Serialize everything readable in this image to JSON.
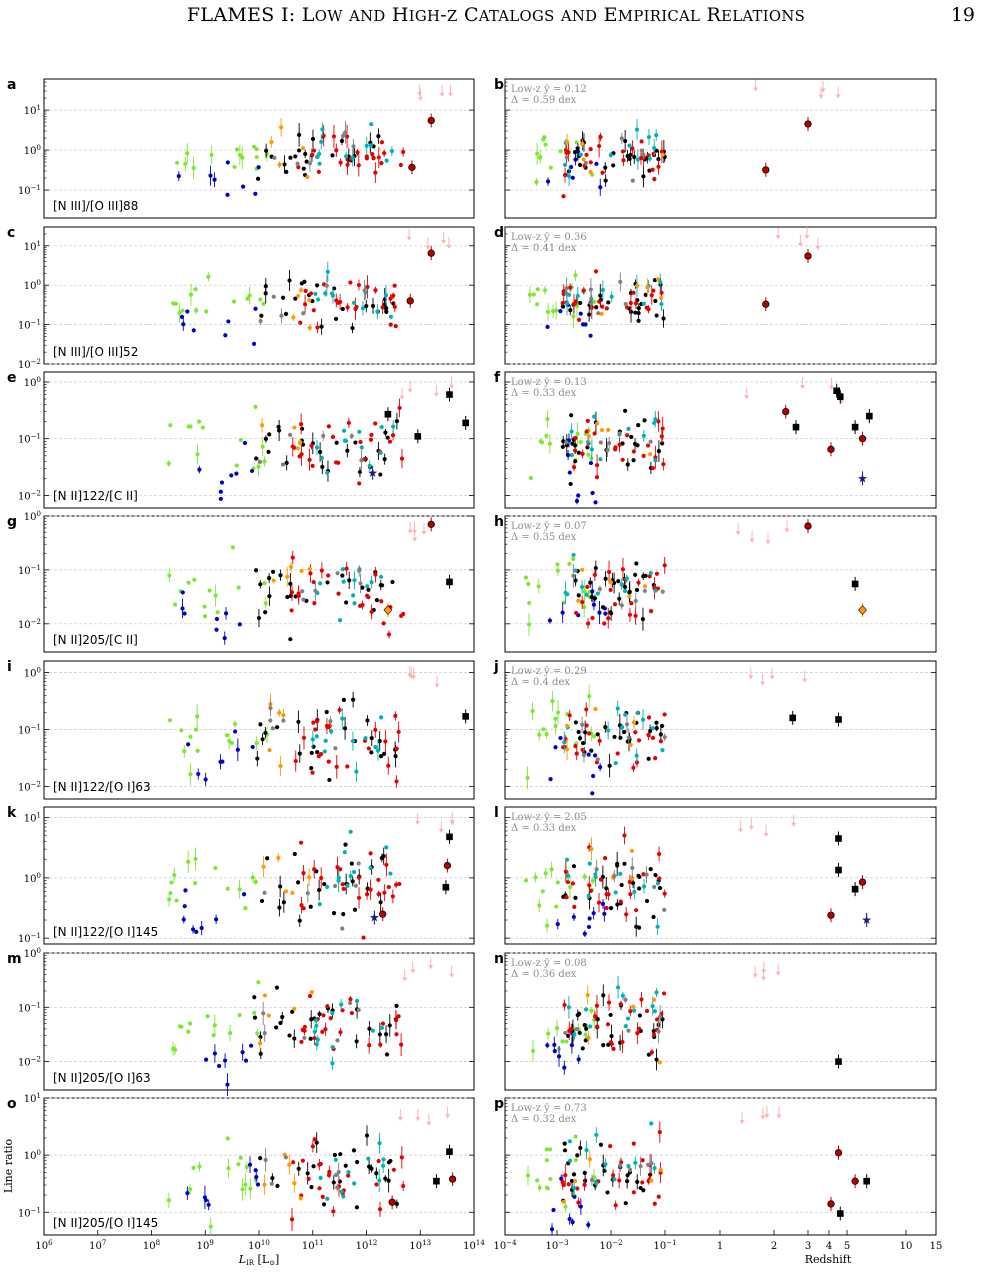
{
  "page": {
    "running_head": "FLAMES I: Low and High-z Catalogs and Empirical Relations",
    "page_number": "19"
  },
  "chart_data": [
    {
      "type": "scatter",
      "title": "",
      "xlabel": "L_IR [L_⊙]",
      "ylabel": "Line ratio",
      "xscale": "log",
      "yscale": "log",
      "xlim": [
        1000000,
        100000000000000
      ],
      "xticks": [
        "10^6",
        "10^7",
        "10^8",
        "10^9",
        "10^10",
        "10^11",
        "10^12",
        "10^13",
        "10^14"
      ],
      "grid": "horizontal dashed at decades",
      "legend": "none",
      "colors": {
        "local_starburst_lowmetal": "#7fe633",
        "dwarf": "#0000cc",
        "lirg": "#000000",
        "ulirg": "#e60000",
        "agn": "#00b3b3",
        "seyfert": "#ff9900",
        "other": "#808080",
        "highz_square": "#000000",
        "highz_circle": "#b30000",
        "upper_limit_pale": "#ffb3b3"
      },
      "panels": [
        {
          "letter": "a",
          "label": "[N III]/[O III]88",
          "ylim": [
            0.02,
            60
          ],
          "yticks": [
            "10^{-1}",
            "10^{0}",
            "10^{1}"
          ],
          "highlighted": [
            {
              "x": 16000000000000.0,
              "y": 5.5,
              "marker": "circle",
              "color": "#b30000"
            },
            {
              "x": 7000000000000.0,
              "y": 0.37,
              "marker": "circle",
              "color": "#b30000"
            }
          ]
        },
        {
          "letter": "c",
          "label": "[N III]/[O III]52",
          "ylim": [
            0.01,
            30
          ],
          "yticks": [
            "10^{-2}",
            "10^{-1}",
            "10^{0}",
            "10^{1}"
          ],
          "highlighted": [
            {
              "x": 16000000000000.0,
              "y": 6.5,
              "marker": "circle",
              "color": "#b30000"
            },
            {
              "x": 6500000000000.0,
              "y": 0.4,
              "marker": "circle",
              "color": "#b30000"
            }
          ]
        },
        {
          "letter": "e",
          "label": "[N II]122/[C II]",
          "ylim": [
            0.006,
            1.5
          ],
          "yticks": [
            "10^{-2}",
            "10^{-1}",
            "10^{0}"
          ],
          "highlighted": [
            {
              "x": 35000000000000.0,
              "y": 0.6,
              "marker": "square",
              "color": "#000000"
            },
            {
              "x": 70000000000000.0,
              "y": 0.19,
              "marker": "square",
              "color": "#000000"
            },
            {
              "x": 2500000000000.0,
              "y": 0.27,
              "marker": "square",
              "color": "#000000"
            },
            {
              "x": 9000000000000.0,
              "y": 0.11,
              "marker": "square",
              "color": "#000000"
            },
            {
              "x": 1300000000000.0,
              "y": 0.025,
              "marker": "star",
              "color": "#1a1a80"
            }
          ]
        },
        {
          "letter": "g",
          "label": "[N II]205/[C II]",
          "ylim": [
            0.003,
            1.0
          ],
          "yticks": [
            "10^{-2}",
            "10^{-1}",
            "10^{0}"
          ],
          "highlighted": [
            {
              "x": 16000000000000.0,
              "y": 0.7,
              "marker": "circle",
              "color": "#b30000"
            },
            {
              "x": 2500000000000.0,
              "y": 0.018,
              "marker": "diamond",
              "color": "#ff9900"
            },
            {
              "x": 35000000000000.0,
              "y": 0.06,
              "marker": "square",
              "color": "#000000"
            }
          ]
        },
        {
          "letter": "i",
          "label": "[N II]122/[O I]63",
          "ylim": [
            0.006,
            1.6
          ],
          "yticks": [
            "10^{-2}",
            "10^{-1}",
            "10^{0}"
          ],
          "highlighted": [
            {
              "x": 70000000000000.0,
              "y": 0.17,
              "marker": "square",
              "color": "#000000"
            }
          ]
        },
        {
          "letter": "k",
          "label": "[N II]122/[O I]145",
          "ylim": [
            0.08,
            15
          ],
          "yticks": [
            "10^{-1}",
            "10^{0}",
            "10^{1}"
          ],
          "highlighted": [
            {
              "x": 35000000000000.0,
              "y": 4.8,
              "marker": "square",
              "color": "#000000"
            },
            {
              "x": 30000000000000.0,
              "y": 0.7,
              "marker": "square",
              "color": "#000000"
            },
            {
              "x": 32000000000000.0,
              "y": 1.6,
              "marker": "circle",
              "color": "#b30000"
            },
            {
              "x": 1400000000000.0,
              "y": 0.22,
              "marker": "star",
              "color": "#1a1a80"
            },
            {
              "x": 2000000000000.0,
              "y": 0.25,
              "marker": "circle",
              "color": "#b30000"
            }
          ]
        },
        {
          "letter": "m",
          "label": "[N II]205/[O I]63",
          "ylim": [
            0.003,
            1.0
          ],
          "yticks": [
            "10^{-2}",
            "10^{-1}",
            "10^{0}"
          ],
          "highlighted": []
        },
        {
          "letter": "o",
          "label": "[N II]205/[O I]145",
          "ylim": [
            0.04,
            10
          ],
          "yticks": [
            "10^{-1}",
            "10^{0}",
            "10^{1}"
          ],
          "highlighted": [
            {
              "x": 35000000000000.0,
              "y": 1.15,
              "marker": "square",
              "color": "#000000"
            },
            {
              "x": 20000000000000.0,
              "y": 0.35,
              "marker": "square",
              "color": "#000000"
            },
            {
              "x": 40000000000000.0,
              "y": 0.38,
              "marker": "circle",
              "color": "#b30000"
            },
            {
              "x": 3000000000000.0,
              "y": 0.15,
              "marker": "circle",
              "color": "#b30000"
            }
          ]
        }
      ]
    },
    {
      "type": "scatter",
      "title": "",
      "xlabel": "Redshift",
      "ylabel": "",
      "xscale": "log below 1, linear-log above 1",
      "xlim": [
        0.0001,
        15
      ],
      "xticks": [
        "10^{-4}",
        "10^{-3}",
        "10^{-2}",
        "10^{-1}",
        "1",
        "2",
        "3",
        "4",
        "5",
        "10",
        "15"
      ],
      "grid": "horizontal dashed at decades",
      "legend": "none",
      "panels": [
        {
          "letter": "b",
          "stat_line1": "Low-z ȳ = 0.12",
          "stat_line2": "Δ = 0.59 dex",
          "ylim": [
            0.02,
            60
          ],
          "highlighted": [
            {
              "z": 3.0,
              "y": 4.5,
              "marker": "circle",
              "color": "#b30000"
            },
            {
              "z": 1.8,
              "y": 0.32,
              "marker": "circle",
              "color": "#b30000"
            }
          ]
        },
        {
          "letter": "d",
          "stat_line1": "Low-z ȳ = 0.36",
          "stat_line2": "Δ = 0.41 dex",
          "ylim": [
            0.01,
            30
          ],
          "highlighted": [
            {
              "z": 3.0,
              "y": 5.5,
              "marker": "circle",
              "color": "#b30000"
            },
            {
              "z": 1.8,
              "y": 0.33,
              "marker": "circle",
              "color": "#b30000"
            }
          ]
        },
        {
          "letter": "f",
          "stat_line1": "Low-z ȳ = 0.13",
          "stat_line2": "Δ = 0.33 dex",
          "ylim": [
            0.006,
            1.5
          ],
          "highlighted": [
            {
              "z": 2.3,
              "y": 0.3,
              "marker": "circle",
              "color": "#b30000"
            },
            {
              "z": 2.6,
              "y": 0.16,
              "marker": "square",
              "color": "#000000"
            },
            {
              "z": 4.4,
              "y": 0.7,
              "marker": "square",
              "color": "#000000"
            },
            {
              "z": 4.6,
              "y": 0.55,
              "marker": "square",
              "color": "#000000"
            },
            {
              "z": 5.5,
              "y": 0.16,
              "marker": "square",
              "color": "#000000"
            },
            {
              "z": 6.5,
              "y": 0.25,
              "marker": "square",
              "color": "#000000"
            },
            {
              "z": 6.0,
              "y": 0.1,
              "marker": "circle",
              "color": "#b30000"
            },
            {
              "z": 4.1,
              "y": 0.065,
              "marker": "circle",
              "color": "#b30000"
            },
            {
              "z": 6.0,
              "y": 0.02,
              "marker": "star",
              "color": "#1a1a80"
            }
          ]
        },
        {
          "letter": "h",
          "stat_line1": "Low-z ȳ = 0.07",
          "stat_line2": "Δ = 0.35 dex",
          "ylim": [
            0.003,
            1.0
          ],
          "highlighted": [
            {
              "z": 3.0,
              "y": 0.65,
              "marker": "circle",
              "color": "#b30000"
            },
            {
              "z": 6.0,
              "y": 0.018,
              "marker": "diamond",
              "color": "#ff9900"
            },
            {
              "z": 5.5,
              "y": 0.055,
              "marker": "square",
              "color": "#000000"
            }
          ]
        },
        {
          "letter": "j",
          "stat_line1": "Low-z ȳ = 0.29",
          "stat_line2": "Δ = 0.4 dex",
          "ylim": [
            0.006,
            1.6
          ],
          "highlighted": [
            {
              "z": 2.5,
              "y": 0.16,
              "marker": "square",
              "color": "#000000"
            },
            {
              "z": 4.5,
              "y": 0.15,
              "marker": "square",
              "color": "#000000"
            }
          ]
        },
        {
          "letter": "l",
          "stat_line1": "Low-z ȳ = 2.05",
          "stat_line2": "Δ = 0.33 dex",
          "ylim": [
            0.08,
            15
          ],
          "highlighted": [
            {
              "z": 4.5,
              "y": 4.5,
              "marker": "square",
              "color": "#000000"
            },
            {
              "z": 4.5,
              "y": 1.35,
              "marker": "square",
              "color": "#000000"
            },
            {
              "z": 5.5,
              "y": 0.65,
              "marker": "square",
              "color": "#000000"
            },
            {
              "z": 6.0,
              "y": 0.85,
              "marker": "circle",
              "color": "#b30000"
            },
            {
              "z": 6.3,
              "y": 0.2,
              "marker": "star",
              "color": "#1a1a80"
            },
            {
              "z": 4.1,
              "y": 0.24,
              "marker": "circle",
              "color": "#b30000"
            }
          ]
        },
        {
          "letter": "n",
          "stat_line1": "Low-z ȳ = 0.08",
          "stat_line2": "Δ = 0.36 dex",
          "ylim": [
            0.003,
            1.0
          ],
          "highlighted": [
            {
              "z": 4.5,
              "y": 0.01,
              "marker": "square",
              "color": "#000000"
            }
          ]
        },
        {
          "letter": "p",
          "stat_line1": "Low-z ȳ = 0.73",
          "stat_line2": "Δ = 0.32 dex",
          "ylim": [
            0.04,
            10
          ],
          "highlighted": [
            {
              "z": 4.5,
              "y": 1.1,
              "marker": "circle",
              "color": "#b30000"
            },
            {
              "z": 4.1,
              "y": 0.14,
              "marker": "circle",
              "color": "#b30000"
            },
            {
              "z": 4.6,
              "y": 0.095,
              "marker": "square",
              "color": "#000000"
            },
            {
              "z": 5.5,
              "y": 0.35,
              "marker": "circle",
              "color": "#b30000"
            },
            {
              "z": 6.3,
              "y": 0.35,
              "marker": "square",
              "color": "#000000"
            }
          ]
        }
      ]
    }
  ]
}
